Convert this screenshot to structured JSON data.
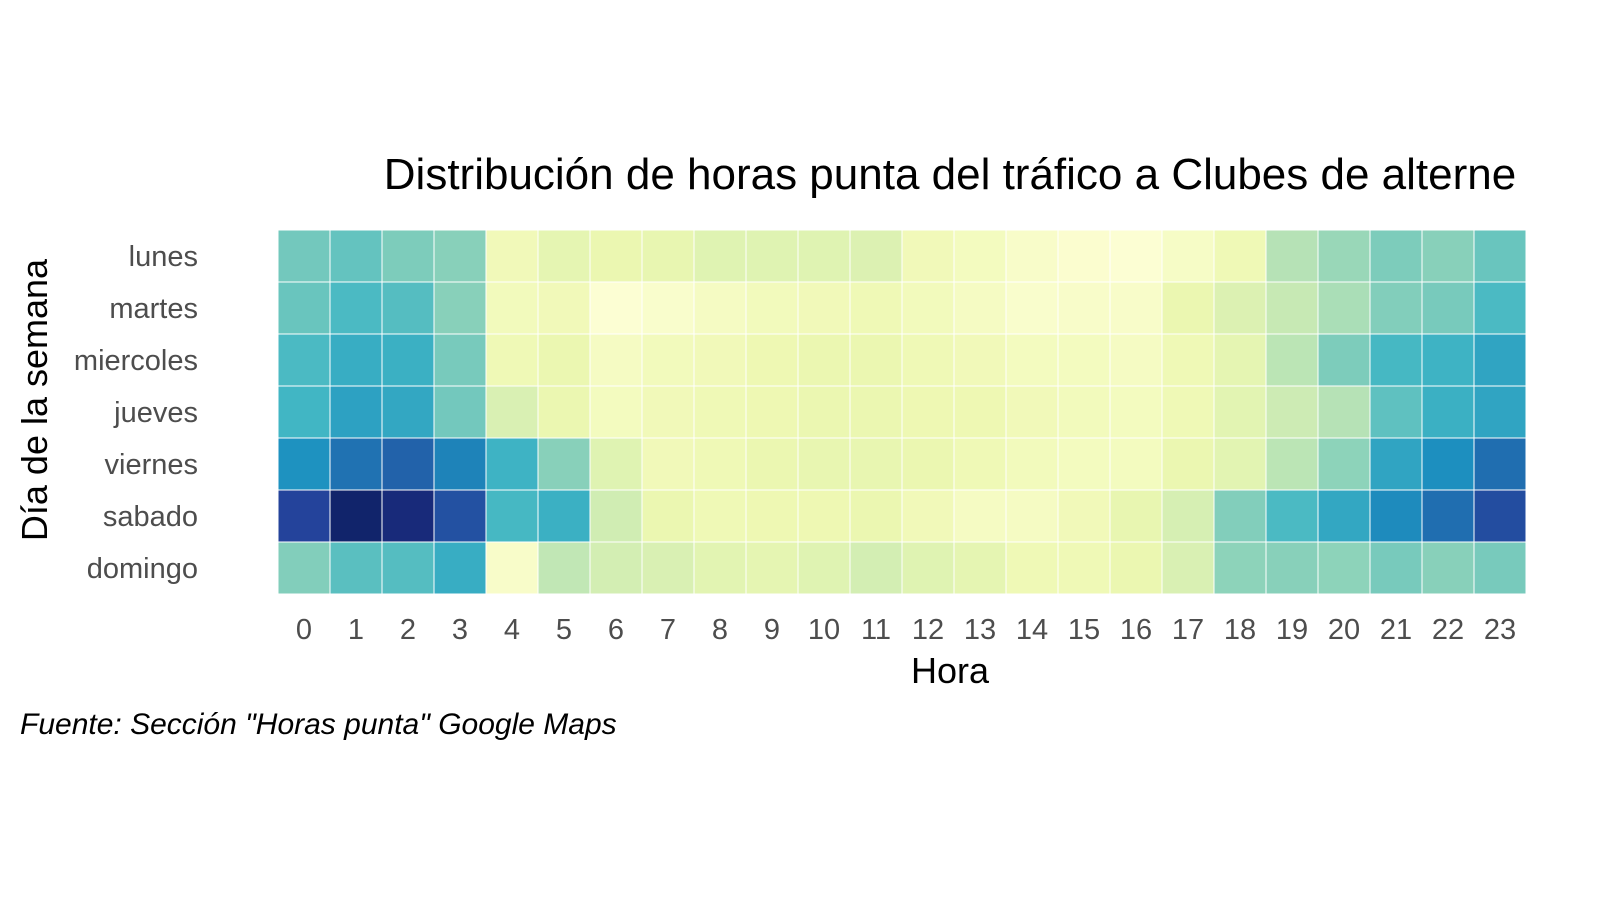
{
  "chart_data": {
    "type": "heatmap",
    "title": "Distribución de horas punta del tráfico a Clubes de alterne",
    "xlabel": "Hora",
    "ylabel": "Día de la semana",
    "caption": "Fuente: Sección \"Horas punta\" Google Maps",
    "x": [
      "0",
      "1",
      "2",
      "3",
      "4",
      "5",
      "6",
      "7",
      "8",
      "9",
      "10",
      "11",
      "12",
      "13",
      "14",
      "15",
      "16",
      "17",
      "18",
      "19",
      "20",
      "21",
      "22",
      "23"
    ],
    "y": [
      "lunes",
      "martes",
      "miercoles",
      "jueves",
      "viernes",
      "sabado",
      "domingo"
    ],
    "colormap": [
      "#ffffd9",
      "#edf8b1",
      "#c7e9b4",
      "#7fcdbb",
      "#41b6c4",
      "#1d91c0",
      "#225ea8",
      "#253494",
      "#081d58"
    ],
    "values": [
      [
        0.4,
        0.43,
        0.38,
        0.36,
        0.1,
        0.15,
        0.13,
        0.14,
        0.17,
        0.17,
        0.17,
        0.18,
        0.1,
        0.08,
        0.05,
        0.03,
        0.02,
        0.06,
        0.11,
        0.28,
        0.33,
        0.38,
        0.36,
        0.42
      ],
      [
        0.42,
        0.48,
        0.46,
        0.36,
        0.09,
        0.1,
        0.02,
        0.04,
        0.07,
        0.09,
        0.1,
        0.11,
        0.09,
        0.07,
        0.04,
        0.05,
        0.05,
        0.13,
        0.18,
        0.25,
        0.3,
        0.37,
        0.39,
        0.48
      ],
      [
        0.48,
        0.53,
        0.52,
        0.39,
        0.11,
        0.13,
        0.07,
        0.09,
        0.1,
        0.12,
        0.13,
        0.13,
        0.11,
        0.1,
        0.08,
        0.08,
        0.07,
        0.11,
        0.15,
        0.27,
        0.38,
        0.49,
        0.51,
        0.56
      ],
      [
        0.5,
        0.57,
        0.55,
        0.4,
        0.19,
        0.13,
        0.08,
        0.1,
        0.11,
        0.12,
        0.13,
        0.13,
        0.12,
        0.12,
        0.1,
        0.09,
        0.08,
        0.11,
        0.16,
        0.23,
        0.28,
        0.44,
        0.52,
        0.56
      ],
      [
        0.62,
        0.7,
        0.74,
        0.66,
        0.51,
        0.36,
        0.17,
        0.1,
        0.11,
        0.13,
        0.14,
        0.14,
        0.13,
        0.11,
        0.09,
        0.08,
        0.08,
        0.13,
        0.16,
        0.27,
        0.35,
        0.56,
        0.63,
        0.71
      ],
      [
        0.83,
        0.96,
        0.93,
        0.79,
        0.49,
        0.52,
        0.22,
        0.13,
        0.11,
        0.12,
        0.12,
        0.13,
        0.1,
        0.07,
        0.07,
        0.1,
        0.14,
        0.2,
        0.37,
        0.48,
        0.55,
        0.64,
        0.71,
        0.8
      ],
      [
        0.37,
        0.45,
        0.46,
        0.53,
        0.05,
        0.26,
        0.21,
        0.19,
        0.16,
        0.15,
        0.17,
        0.21,
        0.17,
        0.15,
        0.11,
        0.11,
        0.13,
        0.19,
        0.35,
        0.36,
        0.35,
        0.39,
        0.36,
        0.39
      ]
    ]
  }
}
